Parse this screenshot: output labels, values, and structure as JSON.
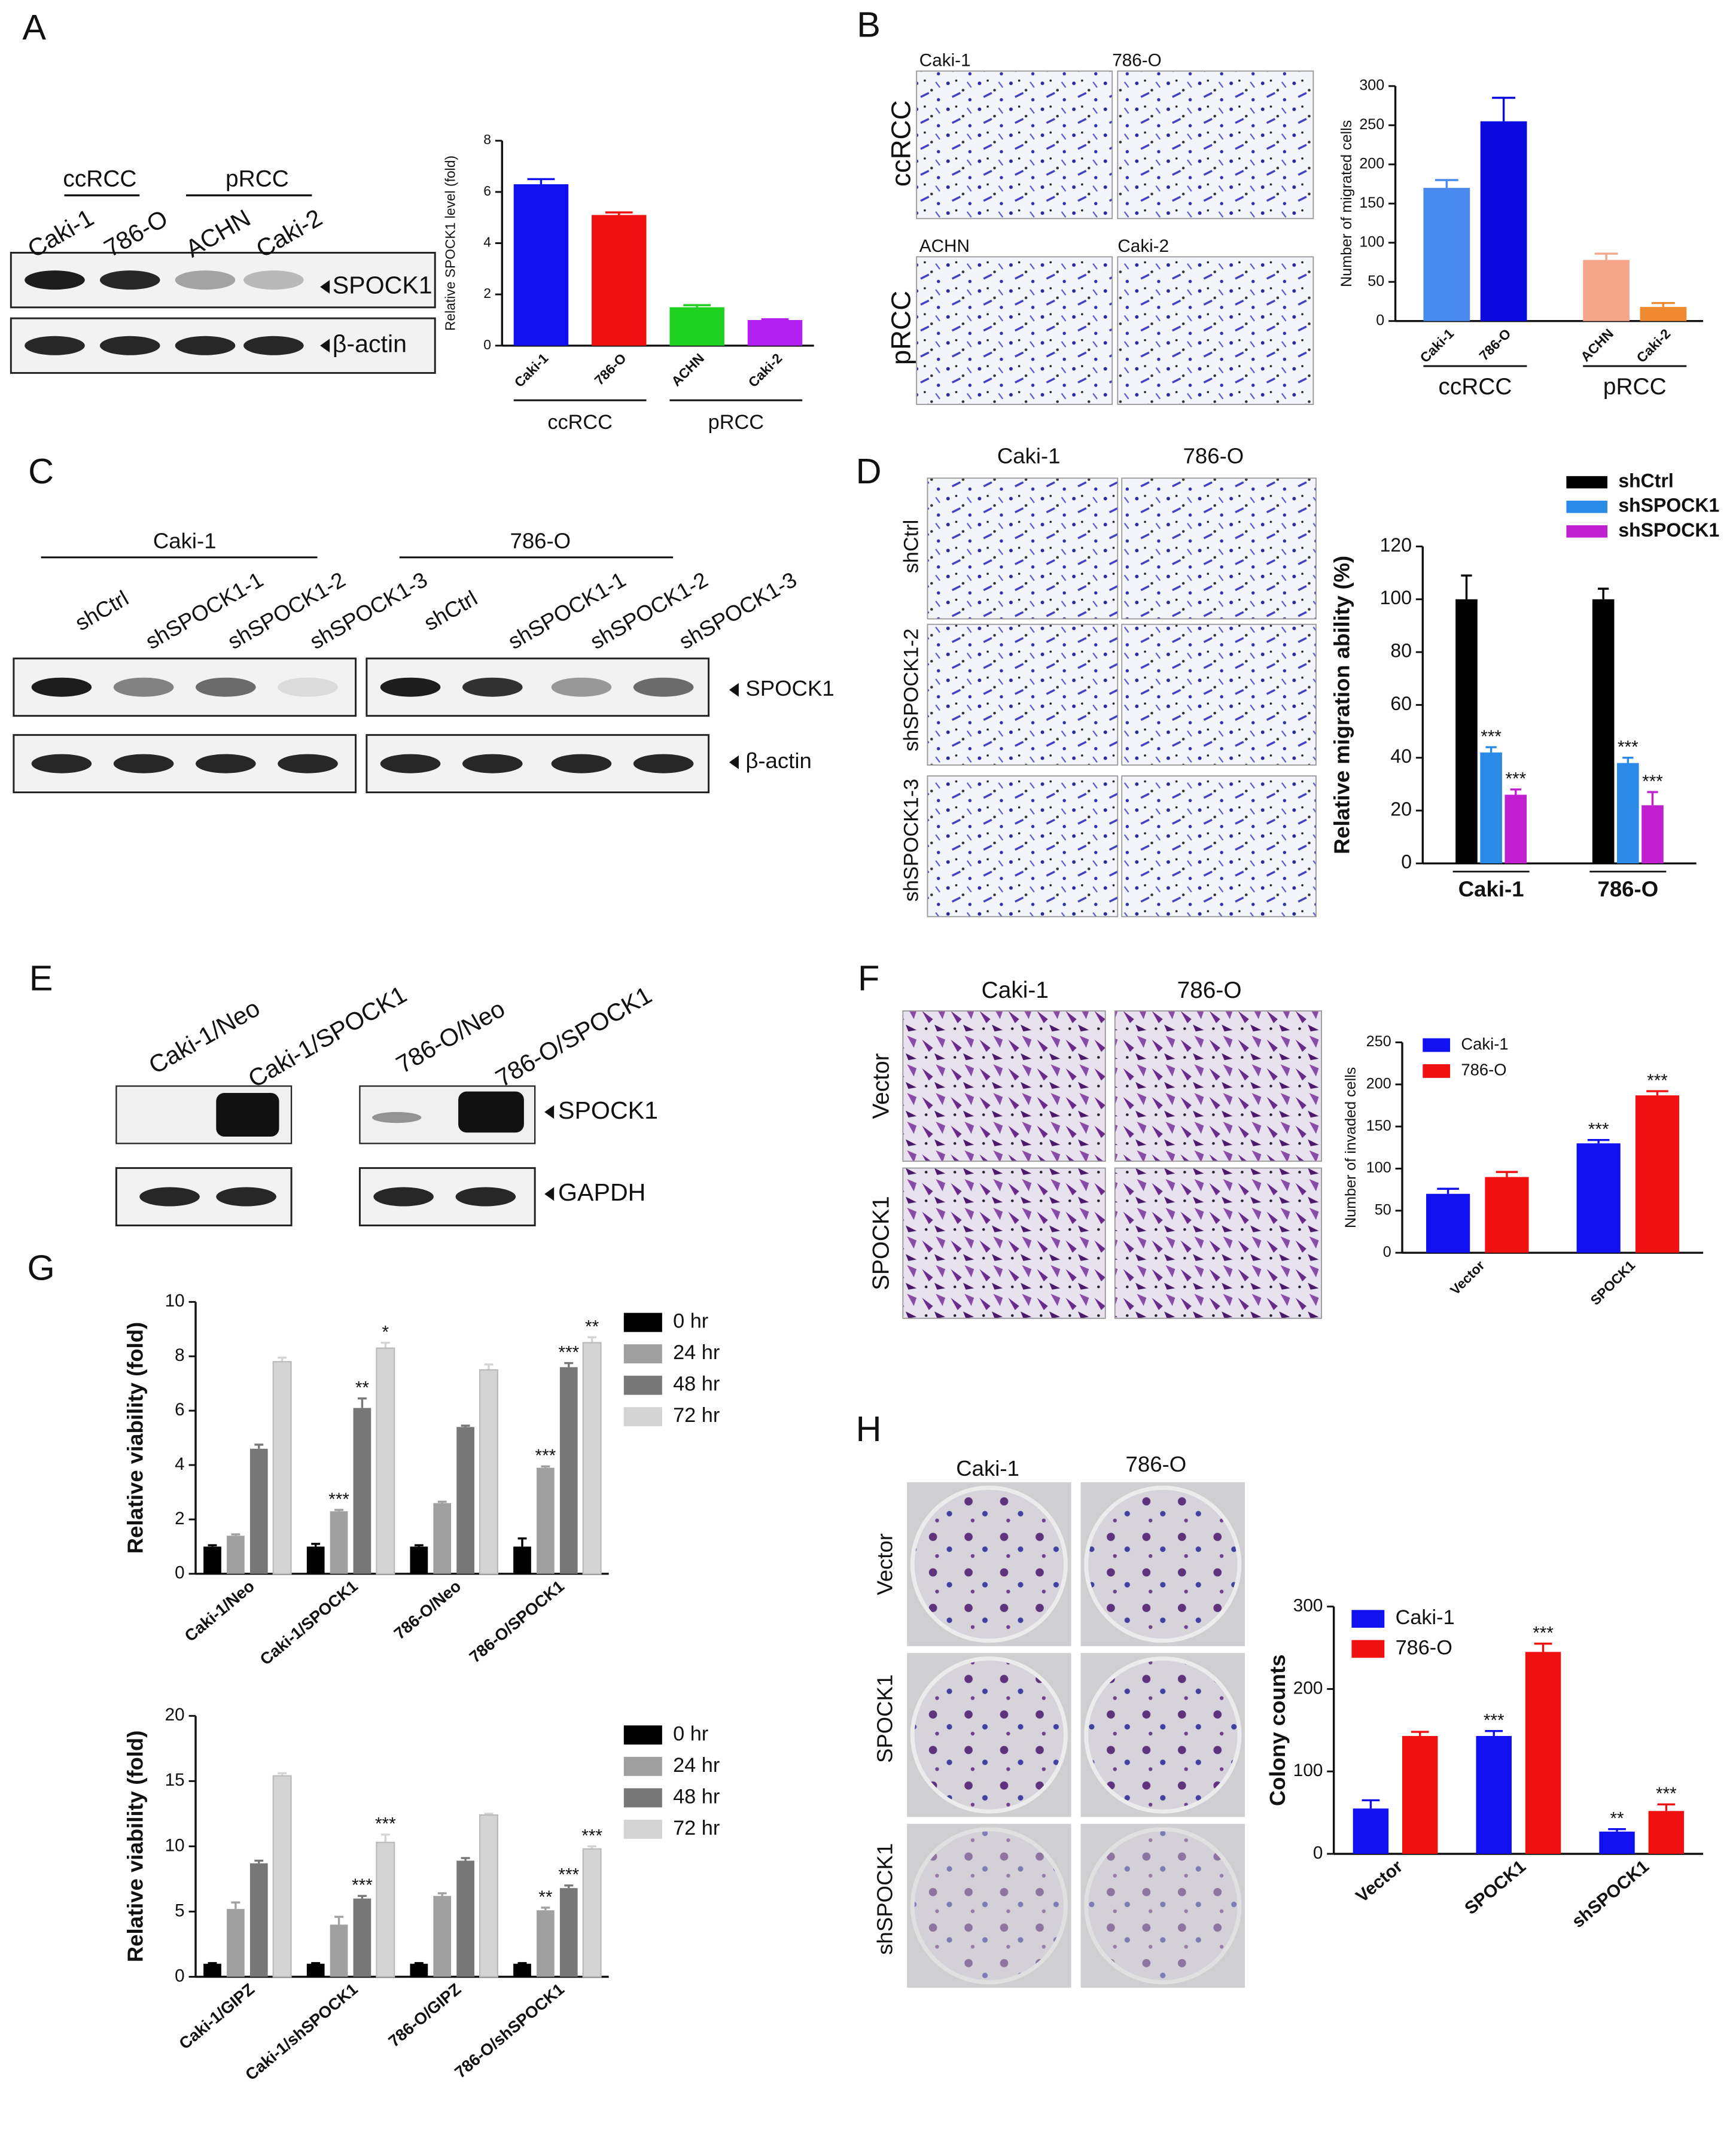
{
  "figure": {
    "panel_labels": [
      "A",
      "B",
      "C",
      "D",
      "E",
      "F",
      "G",
      "H"
    ],
    "A": {
      "groups": [
        "ccRCC",
        "pRCC"
      ],
      "lanes": [
        "Caki-1",
        "786-O",
        "ACHN",
        "Caki-2"
      ],
      "bands": [
        "SPOCK1",
        "β-actin"
      ]
    },
    "B": {
      "rows": [
        "ccRCC",
        "pRCC"
      ],
      "images": [
        "Caki-1",
        "786-O",
        "ACHN",
        "Caki-2"
      ]
    },
    "C": {
      "groups": [
        "Caki-1",
        "786-O"
      ],
      "lanes": [
        "shCtrl",
        "shSPOCK1-1",
        "shSPOCK1-2",
        "shSPOCK1-3",
        "shCtrl",
        "shSPOCK1-1",
        "shSPOCK1-2",
        "shSPOCK1-3"
      ],
      "bands": [
        "SPOCK1",
        "β-actin"
      ]
    },
    "D": {
      "columns": [
        "Caki-1",
        "786-O"
      ],
      "rows": [
        "shCtrl",
        "shSPOCK1-2",
        "shSPOCK1-3"
      ]
    },
    "E": {
      "lanes": [
        "Caki-1/Neo",
        "Caki-1/SPOCK1",
        "786-O/Neo",
        "786-O/SPOCK1"
      ],
      "bands": [
        "SPOCK1",
        "GAPDH"
      ]
    },
    "F": {
      "columns": [
        "Caki-1",
        "786-O"
      ],
      "rows": [
        "Vector",
        "SPOCK1"
      ]
    },
    "H": {
      "columns": [
        "Caki-1",
        "786-O"
      ],
      "rows": [
        "Vector",
        "SPOCK1",
        "shSPOCK1"
      ]
    }
  },
  "chart_data": [
    {
      "type": "bar",
      "y_label": "Relative SPOCK1 level (fold)",
      "categories": [
        "Caki-1",
        "786-O",
        "ACHN",
        "Caki-2"
      ],
      "values": [
        6.3,
        5.1,
        1.5,
        1.0
      ],
      "errors": [
        0.2,
        0.1,
        0.08,
        0.03
      ],
      "colors": [
        "#1010f0",
        "#f01010",
        "#20d020",
        "#b020f0"
      ],
      "group_labels": [
        "ccRCC",
        "pRCC"
      ],
      "ylim": [
        0,
        8
      ],
      "yticks": [
        0,
        2,
        4,
        6,
        8
      ]
    },
    {
      "type": "bar",
      "y_label": "Number of migrated cells",
      "categories": [
        "Caki-1",
        "786-O",
        "ACHN",
        "Caki-2"
      ],
      "values": [
        170,
        255,
        78,
        18
      ],
      "errors": [
        10,
        30,
        8,
        5
      ],
      "colors": [
        "#4a8af0",
        "#0a0ae0",
        "#f4a58a",
        "#f08a30"
      ],
      "group_labels": [
        "ccRCC",
        "pRCC"
      ],
      "ylim": [
        0,
        300
      ],
      "yticks": [
        0,
        50,
        100,
        150,
        200,
        250,
        300
      ]
    },
    {
      "type": "bar",
      "y_label": "Relative migration ability (%)",
      "categories": [
        "Caki-1",
        "786-O"
      ],
      "series": [
        {
          "name": "shCtrl",
          "color": "#000000",
          "values": [
            100,
            100
          ],
          "errors": [
            9,
            4
          ]
        },
        {
          "name": "shSPOCK1",
          "color": "#2a8ae8",
          "values": [
            42,
            38
          ],
          "errors": [
            2,
            2
          ],
          "annotations": [
            "***",
            "***"
          ]
        },
        {
          "name": "shSPOCK1",
          "color": "#c020d0",
          "values": [
            26,
            22
          ],
          "errors": [
            2,
            5
          ],
          "annotations": [
            "***",
            "***"
          ]
        }
      ],
      "ylim": [
        0,
        120
      ],
      "yticks": [
        0,
        20,
        40,
        60,
        80,
        100,
        120
      ]
    },
    {
      "type": "bar",
      "y_label": "Number of invaded cells",
      "categories": [
        "Vector",
        "SPOCK1"
      ],
      "series": [
        {
          "name": "Caki-1",
          "color": "#1010f0",
          "values": [
            70,
            130
          ],
          "errors": [
            6,
            4
          ],
          "annotations": [
            null,
            "***"
          ]
        },
        {
          "name": "786-O",
          "color": "#f01010",
          "values": [
            90,
            187
          ],
          "errors": [
            6,
            5
          ],
          "annotations": [
            null,
            "***"
          ]
        }
      ],
      "ylim": [
        0,
        250
      ],
      "yticks": [
        0,
        50,
        100,
        150,
        200,
        250
      ]
    },
    {
      "type": "bar",
      "y_label": "Relative viability (fold)",
      "categories": [
        "Caki-1/Neo",
        "Caki-1/SPOCK1",
        "786-O/Neo",
        "786-O/SPOCK1"
      ],
      "series": [
        {
          "name": "0 hr",
          "color": "#000000",
          "values": [
            1,
            1,
            1,
            1
          ],
          "errors": [
            0.05,
            0.1,
            0.05,
            0.3
          ]
        },
        {
          "name": "24 hr",
          "color": "#a0a0a0",
          "values": [
            1.4,
            2.3,
            2.6,
            3.9
          ],
          "errors": [
            0.05,
            0.05,
            0.05,
            0.05
          ],
          "annotations": [
            null,
            "***",
            null,
            "***"
          ]
        },
        {
          "name": "48 hr",
          "color": "#777777",
          "values": [
            4.6,
            6.1,
            5.4,
            7.6
          ],
          "errors": [
            0.15,
            0.35,
            0.05,
            0.15
          ],
          "annotations": [
            null,
            "**",
            null,
            "***"
          ]
        },
        {
          "name": "72 hr",
          "color": "#d4d4d4",
          "values": [
            7.8,
            8.3,
            7.5,
            8.5
          ],
          "errors": [
            0.15,
            0.2,
            0.2,
            0.2
          ],
          "annotations": [
            null,
            "*",
            null,
            "**"
          ]
        }
      ],
      "ylim": [
        0,
        10
      ],
      "yticks": [
        0,
        2,
        4,
        6,
        8,
        10
      ]
    },
    {
      "type": "bar",
      "y_label": "Relative viability (fold)",
      "categories": [
        "Caki-1/GIPZ",
        "Caki-1/shSPOCK1",
        "786-O/GIPZ",
        "786-O/shSPOCK1"
      ],
      "series": [
        {
          "name": "0 hr",
          "color": "#000000",
          "values": [
            1,
            1,
            1,
            1
          ],
          "errors": [
            0.05,
            0.05,
            0.05,
            0.05
          ]
        },
        {
          "name": "24 hr",
          "color": "#a0a0a0",
          "values": [
            5.2,
            4.0,
            6.2,
            5.1
          ],
          "errors": [
            0.5,
            0.6,
            0.2,
            0.2
          ],
          "annotations": [
            null,
            null,
            null,
            "**"
          ]
        },
        {
          "name": "48 hr",
          "color": "#777777",
          "values": [
            8.7,
            6.0,
            8.9,
            6.8
          ],
          "errors": [
            0.2,
            0.2,
            0.2,
            0.2
          ],
          "annotations": [
            null,
            "***",
            null,
            "***"
          ]
        },
        {
          "name": "72 hr",
          "color": "#d4d4d4",
          "values": [
            15.4,
            10.3,
            12.4,
            9.8
          ],
          "errors": [
            0.2,
            0.6,
            0.1,
            0.2
          ],
          "annotations": [
            null,
            "***",
            null,
            "***"
          ]
        }
      ],
      "ylim": [
        0,
        20
      ],
      "yticks": [
        0,
        5,
        10,
        15,
        20
      ]
    },
    {
      "type": "bar",
      "y_label": "Colony counts",
      "categories": [
        "Vector",
        "SPOCK1",
        "shSPOCK1"
      ],
      "series": [
        {
          "name": "Caki-1",
          "color": "#1010f0",
          "values": [
            55,
            143,
            27
          ],
          "errors": [
            10,
            6,
            3
          ],
          "annotations": [
            null,
            "***",
            "**"
          ]
        },
        {
          "name": "786-O",
          "color": "#f01010",
          "values": [
            143,
            245,
            52
          ],
          "errors": [
            5,
            10,
            8
          ],
          "annotations": [
            null,
            "***",
            "***"
          ]
        }
      ],
      "ylim": [
        0,
        300
      ],
      "yticks": [
        0,
        100,
        200,
        300
      ]
    }
  ]
}
